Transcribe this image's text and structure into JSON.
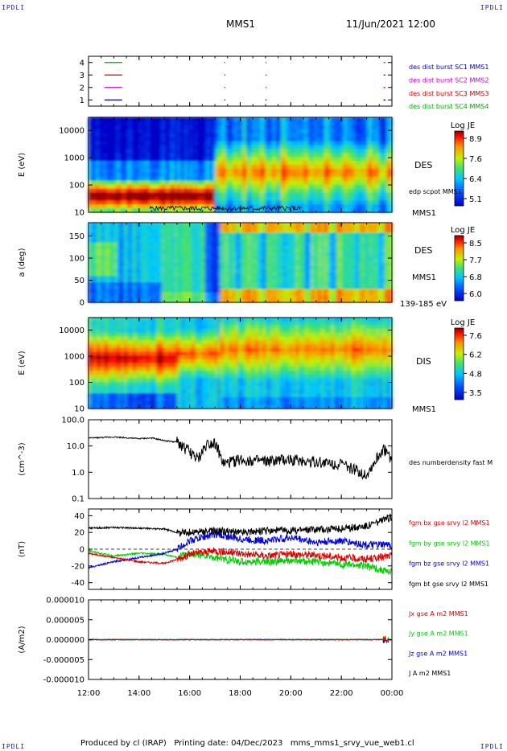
{
  "header": {
    "left_corner": "IPDLI",
    "right_corner": "IPDLI",
    "title": "MMS1",
    "datetime": "11/Jun/2021 12:00"
  },
  "footer": {
    "left_corner": "IPDLI",
    "right_corner": "IPDLI",
    "text": "Produced by cl (IRAP)   Printing date: 04/Dec/2023   mms_mms1_srvy_vue_web1.cl"
  },
  "chart_data": [
    {
      "type": "line",
      "panel": "burst-availability",
      "yticks": [
        "4",
        "3",
        "2",
        "1"
      ],
      "ylim": [
        0.5,
        4.5
      ],
      "series": [
        {
          "name": "des dist burst SC1 MMS1",
          "color": "#0000cc",
          "y": 1,
          "intervals": [
            [
              "12:38",
              "13:20"
            ],
            [
              "17:22",
              "17:25"
            ],
            [
              "19:00",
              "19:02"
            ],
            [
              "23:40",
              "23:45"
            ]
          ]
        },
        {
          "name": "des dist burst SC2 MMS2",
          "color": "#cc00cc",
          "y": 2,
          "intervals": [
            [
              "12:38",
              "13:20"
            ],
            [
              "17:22",
              "17:25"
            ],
            [
              "19:00",
              "19:02"
            ],
            [
              "23:40",
              "23:45"
            ]
          ]
        },
        {
          "name": "des dist burst SC3 MMS3",
          "color": "#cc0000",
          "y": 3,
          "intervals": [
            [
              "12:38",
              "13:20"
            ],
            [
              "17:22",
              "17:25"
            ],
            [
              "19:00",
              "19:02"
            ],
            [
              "23:40",
              "23:45"
            ]
          ]
        },
        {
          "name": "des dist burst SC4 MMS4",
          "color": "#00aa00",
          "y": 4,
          "intervals": [
            [
              "12:38",
              "13:20"
            ],
            [
              "17:22",
              "17:25"
            ],
            [
              "19:00",
              "19:02"
            ],
            [
              "23:40",
              "23:45"
            ]
          ]
        }
      ]
    },
    {
      "type": "heatmap",
      "panel": "electron-energy",
      "ylabel": "E (eV)",
      "yscale": "log",
      "ylim": [
        10,
        30000
      ],
      "yticks": [
        "10000",
        "1000",
        "100",
        "10"
      ],
      "label": "DES",
      "spacecraft": "MMS1",
      "overlay": "edp scpot MMS1",
      "colorbar": {
        "title": "Log JE",
        "ticks": [
          "8.9",
          "7.6",
          "6.4",
          "5.1"
        ],
        "range": [
          5.1,
          8.9
        ]
      }
    },
    {
      "type": "heatmap",
      "panel": "electron-pitch-angle",
      "ylabel": "a (deg)",
      "ylim": [
        0,
        180
      ],
      "yticks": [
        "150",
        "100",
        "50",
        "0"
      ],
      "label": "DES",
      "spacecraft": "MMS1",
      "energy_range": "139-185 eV",
      "colorbar": {
        "title": "Log JE",
        "ticks": [
          "8.5",
          "7.7",
          "6.8",
          "6.0"
        ],
        "range": [
          6.0,
          8.5
        ]
      }
    },
    {
      "type": "heatmap",
      "panel": "ion-energy",
      "ylabel": "E (eV)",
      "yscale": "log",
      "ylim": [
        10,
        30000
      ],
      "yticks": [
        "10000",
        "1000",
        "100",
        "10"
      ],
      "label": "DIS",
      "spacecraft": "MMS1",
      "colorbar": {
        "title": "Log JE",
        "ticks": [
          "7.6",
          "6.2",
          "4.8",
          "3.5"
        ],
        "range": [
          3.5,
          7.6
        ]
      }
    },
    {
      "type": "line",
      "panel": "density",
      "ylabel": "(cm^-3)",
      "yscale": "log",
      "ylim": [
        0.1,
        100
      ],
      "yticks": [
        "100.0",
        "10.0",
        "1.0",
        "0.1"
      ],
      "series": [
        {
          "name": "des numberdensity fast M",
          "color": "#000000",
          "x": [
            "12:00",
            "13:00",
            "14:00",
            "14:30",
            "15:00",
            "15:30",
            "16:00",
            "16:20",
            "16:40",
            "17:00",
            "17:20",
            "18:00",
            "19:00",
            "20:00",
            "21:00",
            "22:00",
            "23:00",
            "23:40",
            "24:00"
          ],
          "y": [
            20,
            22,
            19,
            20,
            16,
            14,
            6,
            3,
            12,
            14,
            2,
            3,
            2.5,
            3,
            2.5,
            2,
            0.8,
            8,
            3
          ]
        }
      ]
    },
    {
      "type": "line",
      "panel": "magnetic-field",
      "ylabel": "(nT)",
      "ylim": [
        -48,
        48
      ],
      "yticks": [
        "40",
        "20",
        "0",
        "-20",
        "-40"
      ],
      "series": [
        {
          "name": "fgm bx gse srvy l2 MMS1",
          "color": "#dd0000",
          "x": [
            "12:00",
            "13:00",
            "14:00",
            "15:00",
            "15:30",
            "16:00",
            "17:00",
            "18:00",
            "19:00",
            "20:00",
            "21:00",
            "22:00",
            "23:00",
            "24:00"
          ],
          "y": [
            -5,
            -10,
            -15,
            -17,
            -12,
            -6,
            -2,
            -5,
            -8,
            -6,
            -7,
            -10,
            -12,
            -8
          ]
        },
        {
          "name": "fgm by gse srvy l2 MMS1",
          "color": "#00cc00",
          "x": [
            "12:00",
            "13:00",
            "14:00",
            "15:00",
            "15:30",
            "16:00",
            "17:00",
            "18:00",
            "19:00",
            "20:00",
            "21:00",
            "22:00",
            "23:00",
            "24:00"
          ],
          "y": [
            -2,
            -8,
            -5,
            -6,
            -10,
            -5,
            -10,
            -15,
            -15,
            -14,
            -15,
            -18,
            -20,
            -28
          ]
        },
        {
          "name": "fgm bz gse srvy l2 MMS1",
          "color": "#0000dd",
          "x": [
            "12:00",
            "13:00",
            "14:00",
            "15:00",
            "15:30",
            "16:00",
            "17:00",
            "18:00",
            "19:00",
            "20:00",
            "21:00",
            "22:00",
            "23:00",
            "24:00"
          ],
          "y": [
            -22,
            -15,
            -10,
            -5,
            0,
            10,
            18,
            12,
            10,
            14,
            8,
            10,
            5,
            5
          ]
        },
        {
          "name": "fgm bt gse srvy l2 MMS1",
          "color": "#000000",
          "x": [
            "12:00",
            "13:00",
            "14:00",
            "15:00",
            "15:30",
            "16:00",
            "17:00",
            "18:00",
            "19:00",
            "20:00",
            "21:00",
            "22:00",
            "23:00",
            "24:00"
          ],
          "y": [
            25,
            26,
            25,
            24,
            20,
            20,
            22,
            20,
            22,
            22,
            24,
            24,
            28,
            38
          ]
        }
      ]
    },
    {
      "type": "line",
      "panel": "current-density",
      "ylabel": "(A/m2)",
      "ylim": [
        -1e-05,
        1e-05
      ],
      "yticks": [
        "0.000010",
        "0.000005",
        "0.000000",
        "-0.000005",
        "-0.000010"
      ],
      "series": [
        {
          "name": "Jx gse A m2 MMS1",
          "color": "#dd0000"
        },
        {
          "name": "Jy gse A m2 MMS1",
          "color": "#00cc00"
        },
        {
          "name": "Jz gse A m2 MMS1",
          "color": "#0000dd"
        },
        {
          "name": "J A m2 MMS1",
          "color": "#000000"
        }
      ]
    }
  ],
  "xaxis": {
    "ticks": [
      "12:00",
      "14:00",
      "16:00",
      "18:00",
      "20:00",
      "22:00",
      "00:00"
    ]
  }
}
